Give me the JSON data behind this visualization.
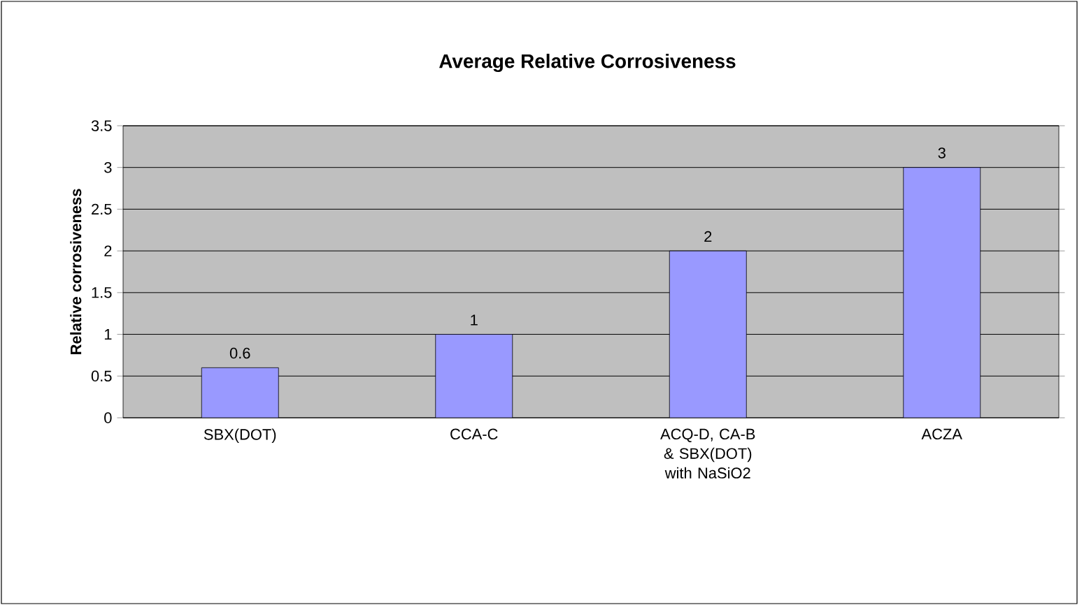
{
  "chart_data": {
    "type": "bar",
    "title": "Average Relative Corrosiveness",
    "ylabel": "Relative corrosiveness",
    "categories": [
      "SBX(DOT)",
      "CCA-C",
      "ACQ-D, CA-B & SBX(DOT) with NaSiO2",
      "ACZA"
    ],
    "values": [
      0.6,
      1,
      2,
      3
    ],
    "color": "#9999ff",
    "ylim": [
      0,
      3.5
    ],
    "yticks": [
      0,
      0.5,
      1,
      1.5,
      2,
      2.5,
      3,
      3.5
    ],
    "grid": "y",
    "data_labels": true
  }
}
